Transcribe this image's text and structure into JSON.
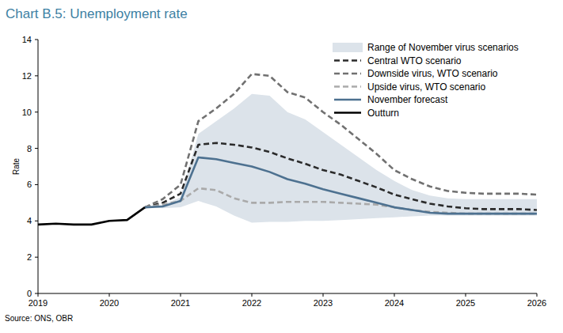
{
  "chart_data": {
    "type": "line",
    "title": "Chart B.5: Unemployment rate",
    "y_label": "Rate",
    "source": "Source: ONS, OBR",
    "x": [
      2019,
      2019.25,
      2019.5,
      2019.75,
      2020,
      2020.25,
      2020.5,
      2020.75,
      2021,
      2021.25,
      2021.5,
      2021.75,
      2022,
      2022.25,
      2022.5,
      2022.75,
      2023,
      2023.25,
      2023.5,
      2023.75,
      2024,
      2024.25,
      2024.5,
      2024.75,
      2025,
      2025.25,
      2025.5,
      2025.75,
      2026
    ],
    "xlim": [
      2019,
      2026
    ],
    "xticks": [
      2019,
      2020,
      2021,
      2022,
      2023,
      2024,
      2025,
      2026
    ],
    "ylim": [
      0,
      14
    ],
    "yticks": [
      0,
      2,
      4,
      6,
      8,
      10,
      12,
      14
    ],
    "grid": false,
    "legend": "upper right",
    "series": [
      {
        "name": "Range of November virus scenarios",
        "type": "band",
        "color": "#dce3ea",
        "high": [
          null,
          null,
          null,
          null,
          null,
          null,
          4.75,
          4.9,
          5.3,
          8.8,
          9.5,
          10.2,
          11.0,
          10.9,
          10.0,
          9.6,
          8.9,
          8.2,
          7.5,
          6.8,
          6.2,
          5.7,
          5.4,
          5.25,
          5.2,
          5.2,
          5.2,
          5.2,
          5.2
        ],
        "low": [
          null,
          null,
          null,
          null,
          null,
          null,
          4.75,
          4.7,
          4.75,
          5.1,
          4.8,
          4.3,
          3.9,
          3.95,
          3.95,
          4.0,
          4.0,
          4.05,
          4.1,
          4.15,
          4.2,
          4.25,
          4.3,
          4.3,
          4.3,
          4.3,
          4.3,
          4.3,
          4.3
        ]
      },
      {
        "name": "Central WTO scenario",
        "type": "line",
        "color": "#2b2b2b",
        "line_style": "dashed",
        "values": [
          null,
          null,
          null,
          null,
          null,
          null,
          4.75,
          5.0,
          5.5,
          8.2,
          8.3,
          8.2,
          8.05,
          7.8,
          7.45,
          7.15,
          6.8,
          6.55,
          6.2,
          5.85,
          5.45,
          5.2,
          4.95,
          4.8,
          4.7,
          4.65,
          4.65,
          4.65,
          4.6
        ]
      },
      {
        "name": "Downside virus, WTO scenario",
        "type": "line",
        "color": "#717171",
        "line_style": "dashed",
        "values": [
          null,
          null,
          null,
          null,
          null,
          null,
          4.75,
          5.2,
          6.0,
          9.5,
          10.2,
          11.0,
          12.1,
          12.0,
          11.1,
          10.8,
          10.0,
          9.3,
          8.5,
          7.7,
          6.8,
          6.3,
          5.9,
          5.65,
          5.55,
          5.5,
          5.5,
          5.5,
          5.45
        ]
      },
      {
        "name": "Upside virus, WTO scenario",
        "type": "line",
        "color": "#aaaaaa",
        "line_style": "dashed",
        "values": [
          null,
          null,
          null,
          null,
          null,
          null,
          4.75,
          4.9,
          5.1,
          5.8,
          5.7,
          5.25,
          5.0,
          5.0,
          5.05,
          5.05,
          5.05,
          5.0,
          4.95,
          4.9,
          4.75,
          4.6,
          4.5,
          4.45,
          4.4,
          4.4,
          4.4,
          4.4,
          4.4
        ]
      },
      {
        "name": "November forecast",
        "type": "line",
        "color": "#4d7190",
        "line_style": "solid",
        "values": [
          null,
          null,
          null,
          null,
          null,
          null,
          4.75,
          4.8,
          5.1,
          7.5,
          7.4,
          7.2,
          7.0,
          6.7,
          6.3,
          6.05,
          5.75,
          5.5,
          5.25,
          5.0,
          4.75,
          4.6,
          4.45,
          4.4,
          4.4,
          4.4,
          4.4,
          4.4,
          4.4
        ]
      },
      {
        "name": "Outturn",
        "type": "line",
        "color": "#000000",
        "line_style": "solid",
        "values": [
          3.8,
          3.85,
          3.8,
          3.8,
          4.0,
          4.05,
          4.75,
          null,
          null,
          null,
          null,
          null,
          null,
          null,
          null,
          null,
          null,
          null,
          null,
          null,
          null,
          null,
          null,
          null,
          null,
          null,
          null,
          null,
          null
        ]
      }
    ]
  }
}
